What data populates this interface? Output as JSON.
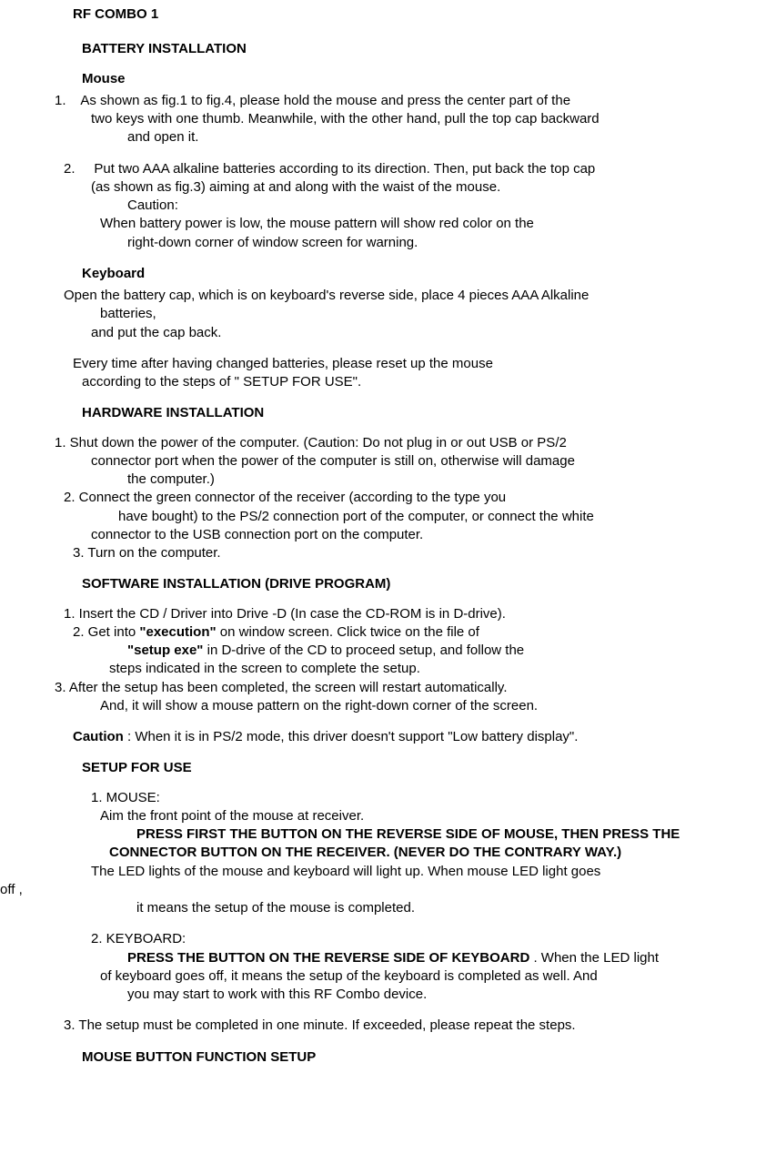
{
  "title": "RF COMBO 1",
  "sections": {
    "battery": {
      "heading": "BATTERY INSTALLATION",
      "mouse": {
        "label": "Mouse",
        "item1": {
          "num": "1.",
          "l1": "As shown as fig.1 to fig.4, please hold the mouse and press the center part of the",
          "l2": "two keys with one thumb. Meanwhile, with the other hand, pull the top cap backward",
          "l3": "and open it."
        },
        "item2": {
          "num": "2.",
          "l1": "Put two AAA alkaline batteries according to its direction. Then, put back the top cap",
          "l2": "(as shown as fig.3) aiming at and along with the waist of the mouse.",
          "caution_label": "Caution:",
          "c1": "When battery power is low, the mouse pattern will show red color on the",
          "c2": "right-down corner of  window screen for warning."
        }
      },
      "keyboard": {
        "label": "Keyboard",
        "l1": "Open the battery cap, which is on keyboard's reverse side,  place 4 pieces AAA Alkaline",
        "l2": "batteries,",
        "l3": "and put the cap back.",
        "reset1": "Every time after having changed batteries, please reset up the mouse",
        "reset2": "according to the steps of \" SETUP FOR USE\"."
      }
    },
    "hardware": {
      "heading": "HARDWARE INSTALLATION",
      "i1l1": "1. Shut down the power of the computer. (Caution: Do not plug in or out USB or PS/2",
      "i1l2": "connector port when the power of the computer is still on, otherwise will damage",
      "i1l3": "the computer.)",
      "i2l1": "2.  Connect the green connector of the receiver    (according to the type you",
      "i2l2": "have bought)  to the PS/2 connection port of the computer,  or connect the white",
      "i2l3": "connector to the USB connection port on the computer.",
      "i3": "3. Turn on the computer."
    },
    "software": {
      "heading": "SOFTWARE INSTALLATION (DRIVE PROGRAM)",
      "i1": "1.   Insert the CD / Driver into Drive -D (In case the CD-ROM is in D-drive).",
      "i2num": "2.   Get into ",
      "i2bold": "\"execution\"",
      "i2rest": " on window screen. Click twice on the file of",
      "i2l2a": "\"setup exe\"",
      "i2l2b": " in D-drive of the CD to proceed setup, and follow the",
      "i2l3": "steps indicated in the screen to complete the setup.",
      "i3l1": "3.  After the setup has been completed, the screen will restart automatically.",
      "i3l2": "And, it will show a mouse pattern on the right-down corner of the screen.",
      "caution_label": "Caution",
      "caution_rest": ":   When it is in PS/2 mode,  this driver doesn't support \"Low battery display\"."
    },
    "setup": {
      "heading": "SETUP FOR USE",
      "mouse": {
        "label": "1. MOUSE:",
        "l1": "Aim the front point of the mouse at receiver.",
        "b1": "PRESS FIRST THE BUTTON ON THE REVERSE SIDE OF MOUSE, THEN PRESS THE",
        "b2": "CONNECTOR   BUTTON  ON  THE  RECEIVER.    (NEVER  DO  THE  CONTRARY  WAY.)",
        "l2a": "The LED lights of the mouse and keyboard will light up.  When mouse LED light goes",
        "l2off": "off ,",
        "l3": "it  means  the   setup of the mouse is completed."
      },
      "keyboard": {
        "label": "2. KEYBOARD:",
        "b1": "PRESS THE BUTTON ON THE REVERSE SIDE OF KEYBOARD",
        "b1rest": ".  When the LED light",
        "l2": "of keyboard goes off, it means the setup of the keyboard is completed as well.   And",
        "l3": "you   may start to work with this RF Combo device."
      },
      "i3": "3.  The setup must be completed in one minute. If exceeded, please repeat the steps."
    },
    "mouse_fn": {
      "heading": "MOUSE   BUTTON FUNCTION SETUP"
    }
  }
}
